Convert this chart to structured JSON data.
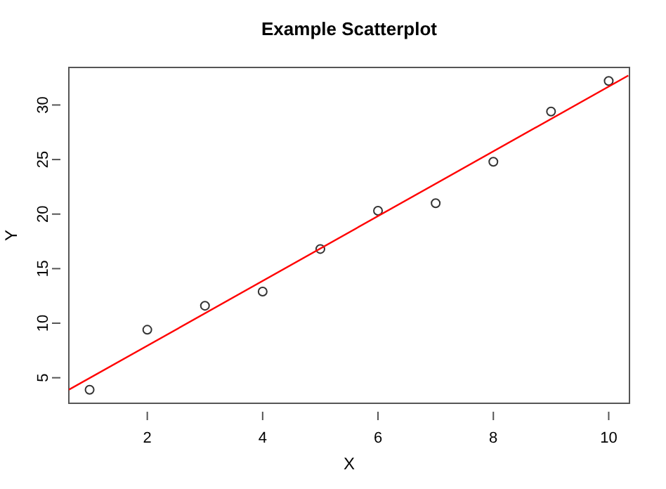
{
  "chart_data": {
    "type": "scatter",
    "title": "Example Scatterplot",
    "xlabel": "X",
    "ylabel": "Y",
    "x": [
      1,
      2,
      3,
      4,
      5,
      6,
      7,
      8,
      9,
      10
    ],
    "series": [
      {
        "color": "#333333",
        "marker": "circle",
        "values": [
          3.9,
          9.4,
          11.6,
          12.9,
          16.8,
          20.3,
          21.0,
          24.8,
          29.4,
          32.2
        ]
      },
      {
        "type": "line",
        "color": "#ff0000",
        "x": [
          0.64,
          10.34
        ],
        "values": [
          3.9,
          32.7
        ]
      }
    ],
    "xlim": [
      0.64,
      10.36
    ],
    "ylim": [
      2.66,
      33.44
    ],
    "xticks": [
      2,
      4,
      6,
      8,
      10
    ],
    "yticks": [
      5,
      10,
      15,
      20,
      25,
      30
    ],
    "grid": false
  }
}
